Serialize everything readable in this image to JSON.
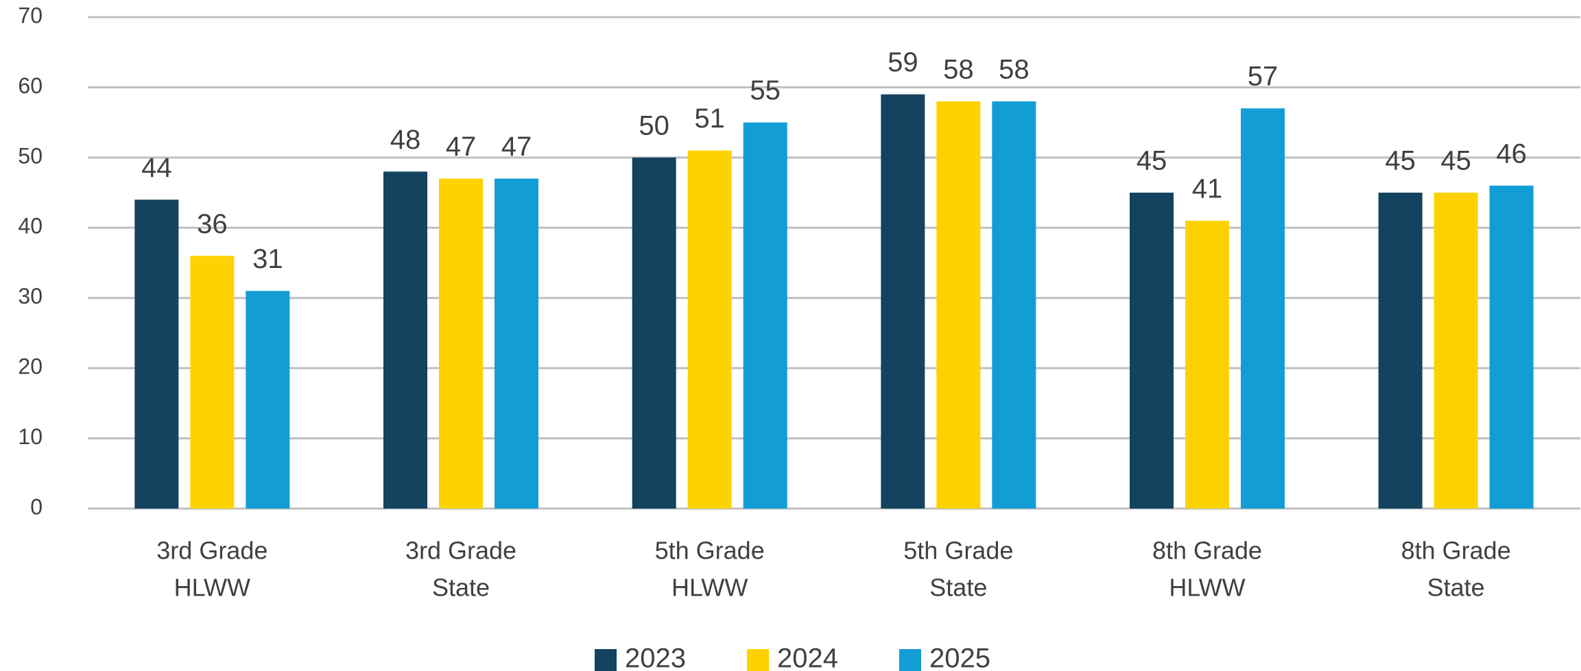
{
  "chart_data": {
    "type": "bar",
    "categories": [
      [
        "3rd Grade",
        "HLWW"
      ],
      [
        "3rd Grade",
        "State"
      ],
      [
        "5th Grade",
        "HLWW"
      ],
      [
        "5th Grade",
        "State"
      ],
      [
        "8th Grade",
        "HLWW"
      ],
      [
        "8th Grade",
        "State"
      ]
    ],
    "series": [
      {
        "name": "2023",
        "color": "#13435f",
        "values": [
          44,
          48,
          50,
          59,
          45,
          45
        ]
      },
      {
        "name": "2024",
        "color": "#fdd200",
        "values": [
          36,
          47,
          51,
          58,
          41,
          45
        ]
      },
      {
        "name": "2025",
        "color": "#129dd5",
        "values": [
          31,
          47,
          55,
          58,
          57,
          46
        ]
      }
    ],
    "ylim": [
      0,
      70
    ],
    "yticks": [
      0,
      10,
      20,
      30,
      40,
      50,
      60,
      70
    ],
    "grid": true,
    "legend": "bottom"
  }
}
